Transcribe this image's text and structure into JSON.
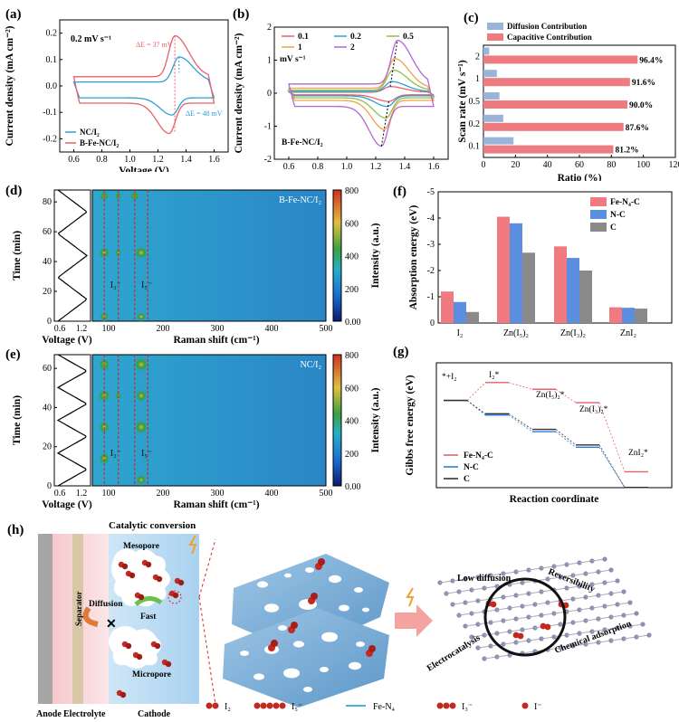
{
  "panel_labels": {
    "a": "(a)",
    "b": "(b)",
    "c": "(c)",
    "d": "(d)",
    "e": "(e)",
    "f": "(f)",
    "g": "(g)",
    "h": "(h)"
  },
  "colors": {
    "red": "#e8606a",
    "blue": "#2e9fd6",
    "purple": "#b466d6",
    "orange": "#f0a14a",
    "green": "#8cc04a",
    "fe": "#f07a80",
    "nc": "#5b8ee0",
    "c": "#8a8a8a"
  },
  "chart_data": [
    {
      "id": "a",
      "type": "line",
      "title": "0.2 mV s⁻¹",
      "xlabel": "Voltage (V)",
      "ylabel": "Current density (mA cm⁻²)",
      "xlim": [
        0.5,
        1.7
      ],
      "ylim": [
        -0.25,
        0.25
      ],
      "xticks": [
        "0.6",
        "0.8",
        "1.0",
        "1.2",
        "1.4",
        "1.6"
      ],
      "yticks": [
        "0.2",
        "0.1",
        "0.0",
        "-0.1",
        "-0.2"
      ],
      "legend": [
        "NC/I₂",
        "B-Fe-NC/I₂"
      ],
      "annotations": [
        "ΔE = 37 mV",
        "ΔE = 48 mV"
      ],
      "series": [
        {
          "name": "NC/I₂",
          "color": "#2e9fd6",
          "ox_peak": [
            1.35,
            0.11
          ],
          "red_peak": [
            1.3,
            -0.11
          ],
          "upper": 0.015,
          "lower": -0.045
        },
        {
          "name": "B-Fe-NC/I₂",
          "color": "#e8606a",
          "ox_peak": [
            1.32,
            0.19
          ],
          "red_peak": [
            1.28,
            -0.18
          ],
          "upper": 0.035,
          "lower": -0.065
        }
      ]
    },
    {
      "id": "b",
      "type": "line",
      "unit": "mV s⁻¹",
      "sample": "B-Fe-NC/I₂",
      "xlabel": "Voltage (V)",
      "ylabel": "Current density (mA cm⁻²)",
      "xlim": [
        0.5,
        1.7
      ],
      "ylim": [
        -2,
        2
      ],
      "xticks": [
        "0.6",
        "0.8",
        "1.0",
        "1.2",
        "1.4",
        "1.6"
      ],
      "yticks": [
        "2",
        "1",
        "0",
        "-1",
        "-2"
      ],
      "legend": [
        "0.1",
        "0.2",
        "0.5",
        "1",
        "2"
      ],
      "series": [
        {
          "name": "0.1",
          "color": "#e8606a",
          "ox_peak": [
            1.3,
            0.2
          ],
          "red_peak": [
            1.29,
            -0.25
          ],
          "upper": 0.03,
          "lower": -0.05
        },
        {
          "name": "0.2",
          "color": "#2e9fd6",
          "ox_peak": [
            1.31,
            0.35
          ],
          "red_peak": [
            1.28,
            -0.4
          ],
          "upper": 0.05,
          "lower": -0.08
        },
        {
          "name": "0.5",
          "color": "#8cc04a",
          "ox_peak": [
            1.32,
            0.7
          ],
          "red_peak": [
            1.27,
            -0.75
          ],
          "upper": 0.09,
          "lower": -0.14
        },
        {
          "name": "1",
          "color": "#f0a14a",
          "ox_peak": [
            1.33,
            1.05
          ],
          "red_peak": [
            1.26,
            -1.1
          ],
          "upper": 0.15,
          "lower": -0.22
        },
        {
          "name": "2",
          "color": "#b466d6",
          "ox_peak": [
            1.35,
            1.6
          ],
          "red_peak": [
            1.24,
            -1.6
          ],
          "upper": 0.28,
          "lower": -0.4
        }
      ]
    },
    {
      "id": "c",
      "type": "bar",
      "orientation": "horizontal",
      "stacked": false,
      "xlabel": "Ratio (%)",
      "ylabel": "Scan rate (mV s⁻¹)",
      "xlim": [
        0,
        120
      ],
      "xticks": [
        "0",
        "20",
        "40",
        "60",
        "80",
        "100",
        "120"
      ],
      "categories": [
        "2",
        "1",
        "0.5",
        "0.2",
        "0.1"
      ],
      "series": [
        {
          "name": "Diffusion Contribution",
          "color": "#9ab4d8",
          "values": [
            3.6,
            8.4,
            10.0,
            12.4,
            18.8
          ]
        },
        {
          "name": "Capacitive Contribution",
          "color": "#ee7b80",
          "values": [
            96.4,
            91.6,
            90.0,
            87.6,
            81.2
          ]
        }
      ],
      "labels": [
        "96.4%",
        "91.6%",
        "90.0%",
        "87.6%",
        "81.2%"
      ]
    },
    {
      "id": "d",
      "type": "heatmap",
      "sample": "B-Fe-NC/I₂",
      "xlabel": "Raman shift (cm⁻¹)",
      "ylabel": "Time (min)",
      "side_xlabel": "Voltage (V)",
      "xticks": [
        "100",
        "200",
        "300",
        "400",
        "500"
      ],
      "yticks": [
        "80",
        "60",
        "40",
        "20",
        "0"
      ],
      "side_xticks": [
        "0.6",
        "1.2"
      ],
      "peaks": [
        "I₃⁻",
        "I₅⁻"
      ],
      "colorbar": {
        "label": "Intensity (a.u.)",
        "ticks": [
          "800",
          "600",
          "400",
          "200",
          "0.00"
        ]
      }
    },
    {
      "id": "e",
      "type": "heatmap",
      "sample": "NC/I₂",
      "xlabel": "Raman shift (cm⁻¹)",
      "ylabel": "Time (min)",
      "side_xlabel": "Voltage (V)",
      "xticks": [
        "100",
        "200",
        "300",
        "400",
        "500"
      ],
      "yticks": [
        "60",
        "40",
        "20",
        "0"
      ],
      "side_xticks": [
        "0.6",
        "1.2"
      ],
      "peaks": [
        "I₃⁻",
        "I₅⁻"
      ],
      "colorbar": {
        "label": "Intensity (a.u.)",
        "ticks": [
          "800",
          "600",
          "400",
          "200",
          "0.00"
        ]
      }
    },
    {
      "id": "f",
      "type": "bar",
      "ylabel": "Absorption energy (eV)",
      "ylim": [
        0,
        -5
      ],
      "yticks": [
        "-5",
        "-4",
        "-3",
        "-2",
        "-1",
        "0"
      ],
      "categories": [
        "I₂",
        "Zn(I₅)₂",
        "Zn(I₃)₂",
        "ZnI₂"
      ],
      "series": [
        {
          "name": "Fe-N₄-C",
          "color": "#f07a80",
          "values": [
            -1.2,
            -4.05,
            -2.92,
            -0.6
          ]
        },
        {
          "name": "N-C",
          "color": "#5b8ee0",
          "values": [
            -0.8,
            -3.8,
            -2.48,
            -0.58
          ]
        },
        {
          "name": "C",
          "color": "#8a8a8a",
          "values": [
            -0.42,
            -2.68,
            -2.0,
            -0.55
          ]
        }
      ]
    },
    {
      "id": "g",
      "type": "line",
      "xlabel": "Reaction coordinate",
      "ylabel": "Gibbs free energy (eV)",
      "states": [
        "*+I₂",
        "I₂*",
        "Zn(I₅)₂*",
        "Zn(I₃)₂*",
        "ZnI₂*"
      ],
      "series": [
        {
          "name": "Fe-N₄-C",
          "color": "#e8606a",
          "values": [
            0,
            0.4,
            0.25,
            -0.05,
            -1.6
          ]
        },
        {
          "name": "N-C",
          "color": "#2e7de0",
          "values": [
            0,
            -0.33,
            -0.7,
            -1.05,
            -1.95
          ]
        },
        {
          "name": "C",
          "color": "#333333",
          "values": [
            0,
            -0.3,
            -0.65,
            -1.0,
            -1.95
          ]
        }
      ]
    }
  ],
  "panel_h": {
    "title": "Catalytic conversion",
    "left_labels": {
      "separator": "Separator",
      "mesopore": "Mesopore",
      "diffusion": "Diffusion",
      "fast": "Fast",
      "micropore": "Micropore",
      "anode": "Anode",
      "electrolyte": "Electrolyte",
      "cathode": "Cathode"
    },
    "right_labels": {
      "low_diffusion": "Low diffusion",
      "reversibility": "Reversibility",
      "electrocatalysis": "Electrocatalysis",
      "chemical_adsorption": "Chemical adsorption"
    },
    "legend": [
      "I₂",
      "I₅⁻",
      "Fe-N₄",
      "I₃⁻",
      "I⁻"
    ]
  }
}
